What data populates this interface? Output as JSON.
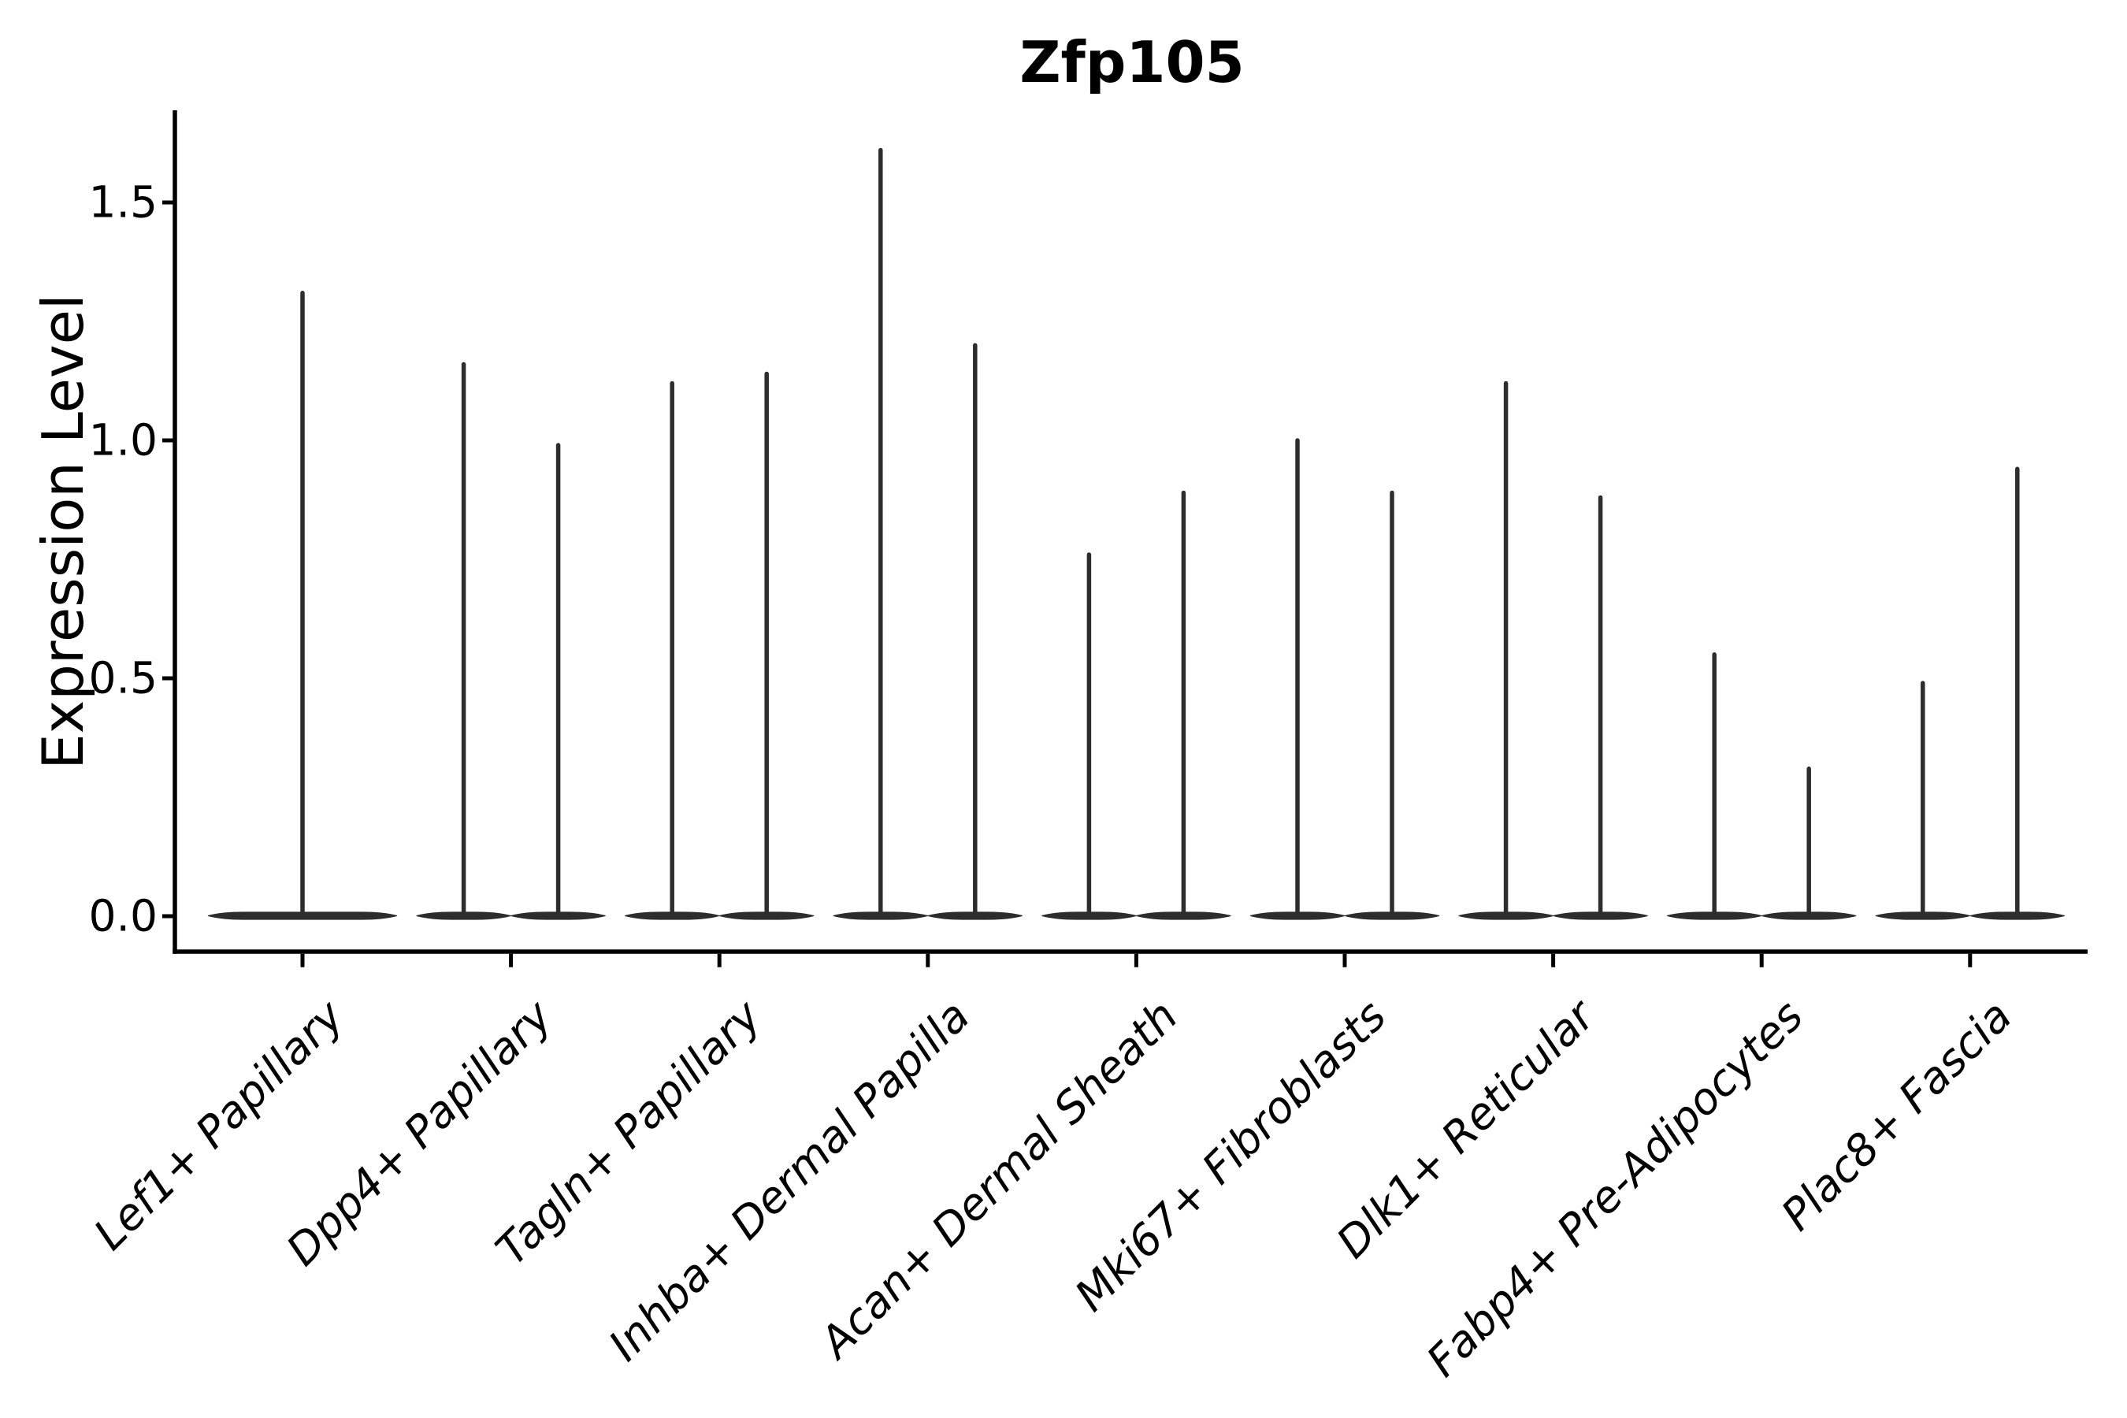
{
  "chart_data": {
    "type": "violin",
    "title": "Zfp105",
    "ylabel": "Expression Level",
    "xlabel": "",
    "ylim": [
      -0.07,
      1.69
    ],
    "yticks": [
      0.0,
      0.5,
      1.0,
      1.5
    ],
    "ytick_labels": [
      "0.0",
      "0.5",
      "1.0",
      "1.5"
    ],
    "categories": [
      "Lef1+ Papillary",
      "Dpp4+ Papillary",
      "Tagln+ Papillary",
      "Inhba+ Dermal Papilla",
      "Acan+ Dermal Sheath",
      "Mki67+ Fibroblasts",
      "Dlk1+ Reticular",
      "Fabp4+ Pre-Adipocytes",
      "Plac8+ Fascia"
    ],
    "violins": [
      {
        "category": "Lef1+ Papillary",
        "peaks": [
          1.31
        ]
      },
      {
        "category": "Dpp4+ Papillary",
        "peaks": [
          1.16,
          0.99
        ]
      },
      {
        "category": "Tagln+ Papillary",
        "peaks": [
          1.12,
          1.14
        ]
      },
      {
        "category": "Inhba+ Dermal Papilla",
        "peaks": [
          1.61,
          1.2
        ]
      },
      {
        "category": "Acan+ Dermal Sheath",
        "peaks": [
          0.76,
          0.89
        ]
      },
      {
        "category": "Mki67+ Fibroblasts",
        "peaks": [
          1.0,
          0.89
        ]
      },
      {
        "category": "Dlk1+ Reticular",
        "peaks": [
          1.12,
          0.88
        ]
      },
      {
        "category": "Fabp4+ Pre-Adipocytes",
        "peaks": [
          0.55,
          0.31
        ]
      },
      {
        "category": "Plac8+ Fascia",
        "peaks": [
          0.49,
          0.94
        ]
      }
    ],
    "baseline_value": 0.0,
    "grid": "off",
    "legend": "none",
    "colors": {
      "ink": "#2d2d2d",
      "axis": "#000000",
      "text": "#000000",
      "background": "#ffffff"
    }
  }
}
